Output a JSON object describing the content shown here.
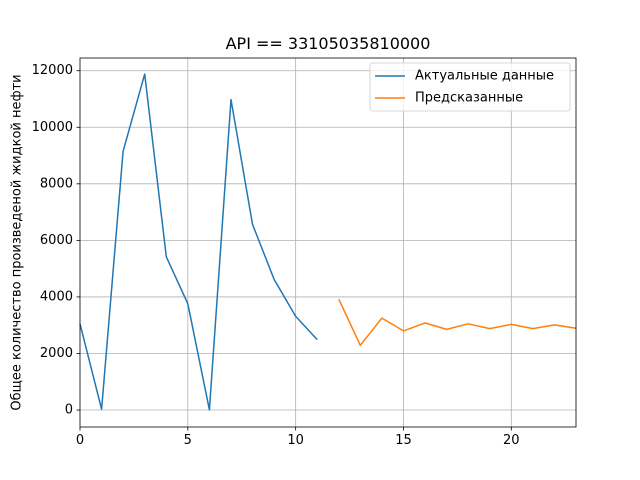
{
  "chart_data": {
    "type": "line",
    "title": "API == 33105035810000",
    "xlabel": "",
    "ylabel": "Общее количество произведеной жидкой нефти",
    "xlim": [
      0,
      23
    ],
    "ylim": [
      -600,
      12450
    ],
    "xticks": [
      0,
      5,
      10,
      15,
      20
    ],
    "yticks": [
      0,
      2000,
      4000,
      6000,
      8000,
      10000,
      12000
    ],
    "grid": true,
    "legend_position": "top-right",
    "series": [
      {
        "name": "Актуальные данные",
        "color": "#1f77b4",
        "x": [
          0,
          1,
          2,
          3,
          4,
          5,
          6,
          7,
          8,
          9,
          10,
          11
        ],
        "y": [
          3050,
          30,
          9150,
          11880,
          5420,
          3760,
          10,
          10980,
          6570,
          4620,
          3310,
          2490
        ]
      },
      {
        "name": "Предсказанные",
        "color": "#ff7f0e",
        "x": [
          12,
          13,
          14,
          15,
          16,
          17,
          18,
          19,
          20,
          21,
          22,
          23
        ],
        "y": [
          3920,
          2290,
          3250,
          2800,
          3080,
          2850,
          3050,
          2880,
          3030,
          2880,
          3010,
          2890
        ]
      }
    ]
  }
}
